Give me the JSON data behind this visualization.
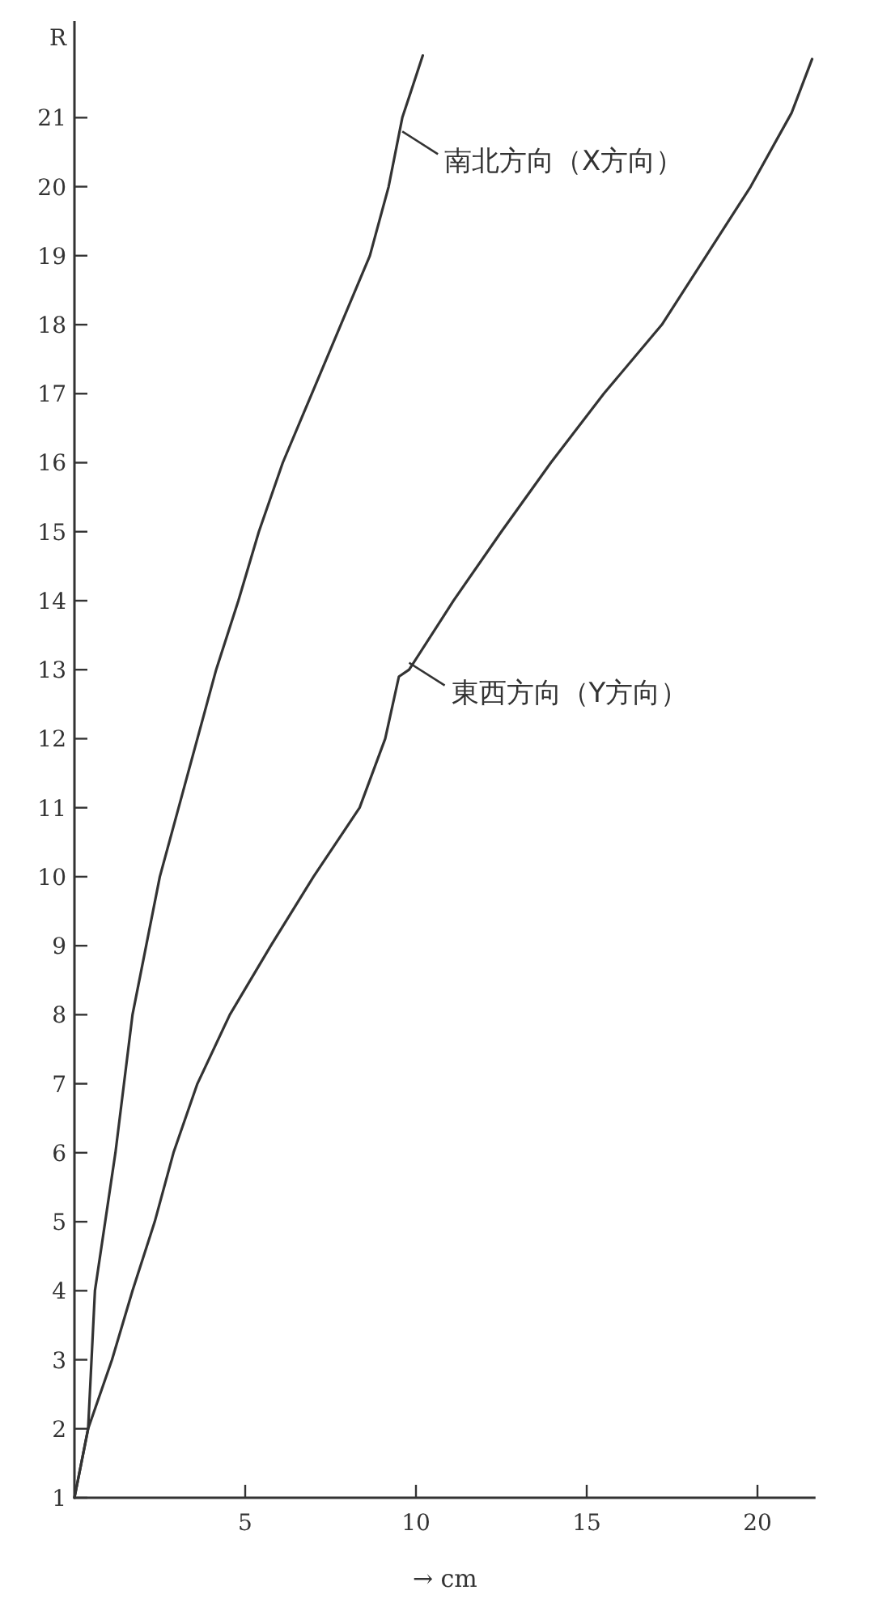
{
  "chart_data": {
    "type": "line",
    "ylabel": "R",
    "xlabel": "→ cm",
    "xlim": [
      0,
      21.7
    ],
    "ylim": [
      1,
      22.4
    ],
    "xticks": [
      5,
      10,
      15,
      20
    ],
    "yticks": [
      1,
      2,
      3,
      4,
      5,
      6,
      7,
      8,
      9,
      10,
      11,
      12,
      13,
      14,
      15,
      16,
      17,
      18,
      19,
      20,
      21
    ],
    "series": [
      {
        "color": "#333333",
        "x": [
          0,
          0.4,
          0.6,
          1.2,
          1.7,
          2.1,
          2.5,
          3.05,
          3.6,
          4.15,
          4.8,
          5.4,
          6.1,
          6.95,
          7.8,
          8.65,
          9.2,
          9.6,
          10.2
        ],
        "values": [
          1,
          2,
          4,
          6,
          8,
          9,
          10,
          11,
          12,
          13,
          14,
          15,
          16,
          17,
          18,
          19,
          20,
          21,
          21.9
        ]
      },
      {
        "color": "#333333",
        "x": [
          0,
          0.4,
          1.1,
          1.7,
          2.35,
          2.9,
          3.6,
          4.55,
          5.75,
          7.0,
          8.35,
          9.1,
          9.5,
          9.8,
          11.1,
          12.5,
          13.95,
          15.5,
          17.2,
          18.5,
          19.8,
          21.0,
          21.6
        ],
        "values": [
          1,
          2,
          3,
          4,
          5,
          6,
          7,
          8,
          9,
          10,
          11,
          12,
          12.9,
          13,
          14,
          15,
          16,
          17,
          18,
          19,
          20,
          21.07,
          21.85
        ]
      }
    ],
    "annotations": [
      {
        "text": "南北方向（X方向）",
        "x": 9.6,
        "y": 20.8
      },
      {
        "text": "東西方向（Y方向）",
        "x": 9.8,
        "y": 13.1
      }
    ]
  }
}
